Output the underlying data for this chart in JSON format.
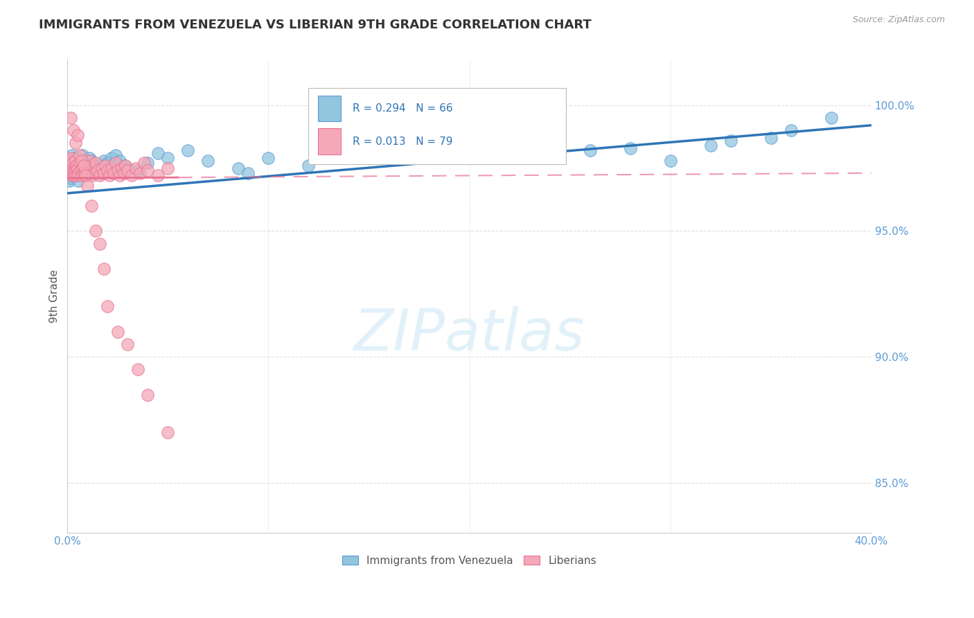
{
  "title": "IMMIGRANTS FROM VENEZUELA VS LIBERIAN 9TH GRADE CORRELATION CHART",
  "source": "Source: ZipAtlas.com",
  "ylabel": "9th Grade",
  "xlim": [
    0.0,
    40.0
  ],
  "ylim": [
    83.0,
    101.8
  ],
  "yticks": [
    85.0,
    90.0,
    95.0,
    100.0
  ],
  "xticks": [
    0,
    10,
    20,
    30,
    40
  ],
  "legend1_label": "Immigrants from Venezuela",
  "legend2_label": "Liberians",
  "blue_color": "#92C5DE",
  "blue_edge_color": "#5B9BD5",
  "pink_color": "#F4A8B8",
  "pink_edge_color": "#E87090",
  "blue_line_color": "#2E75B6",
  "pink_line_color": "#E87090",
  "background_color": "#FFFFFF",
  "tick_color": "#5B9BD5",
  "grid_color": "#DDDDDD",
  "watermark_color": "#D0E8F5",
  "legend_text_color": "#2E75B6",
  "title_color": "#333333",
  "source_color": "#999999",
  "ylabel_color": "#555555",
  "blue_line_x0": 0.0,
  "blue_line_y0": 96.5,
  "blue_line_x1": 40.0,
  "blue_line_y1": 99.2,
  "pink_line_x0": 0.0,
  "pink_line_y0": 97.1,
  "pink_line_x1": 40.0,
  "pink_line_y1": 97.3,
  "pink_solid_end_x": 5.5,
  "blue_scatter_x": [
    0.05,
    0.08,
    0.1,
    0.12,
    0.15,
    0.18,
    0.2,
    0.22,
    0.25,
    0.28,
    0.3,
    0.32,
    0.35,
    0.38,
    0.4,
    0.42,
    0.45,
    0.48,
    0.5,
    0.55,
    0.6,
    0.65,
    0.7,
    0.75,
    0.8,
    0.85,
    0.9,
    0.95,
    1.0,
    1.1,
    1.2,
    1.3,
    1.4,
    1.5,
    1.6,
    1.7,
    1.8,
    1.9,
    2.0,
    2.2,
    2.4,
    2.6,
    2.8,
    3.0,
    3.5,
    4.0,
    4.5,
    5.0,
    6.0,
    7.0,
    8.5,
    10.0,
    14.0,
    17.0,
    21.0,
    26.0,
    30.0,
    33.0,
    36.0,
    38.0,
    22.0,
    28.0,
    12.0,
    9.0,
    35.0,
    32.0
  ],
  "blue_scatter_y": [
    97.2,
    97.0,
    97.5,
    97.3,
    97.1,
    97.4,
    97.2,
    98.0,
    97.6,
    97.3,
    97.8,
    97.5,
    97.9,
    97.6,
    97.4,
    97.8,
    97.5,
    97.2,
    97.6,
    97.0,
    97.5,
    97.8,
    97.3,
    98.0,
    97.6,
    97.4,
    97.2,
    97.5,
    97.7,
    97.9,
    97.8,
    97.6,
    97.5,
    97.4,
    97.3,
    97.6,
    97.8,
    97.5,
    97.7,
    97.9,
    98.0,
    97.8,
    97.6,
    97.5,
    97.4,
    97.7,
    98.1,
    97.9,
    98.2,
    97.8,
    97.5,
    97.9,
    98.3,
    98.5,
    98.0,
    98.2,
    97.8,
    98.6,
    99.0,
    99.5,
    98.1,
    98.3,
    97.6,
    97.3,
    98.7,
    98.4
  ],
  "pink_scatter_x": [
    0.05,
    0.07,
    0.1,
    0.12,
    0.15,
    0.18,
    0.2,
    0.22,
    0.25,
    0.28,
    0.3,
    0.32,
    0.35,
    0.38,
    0.4,
    0.42,
    0.45,
    0.48,
    0.5,
    0.55,
    0.6,
    0.65,
    0.7,
    0.75,
    0.8,
    0.85,
    0.9,
    0.95,
    1.0,
    1.05,
    1.1,
    1.15,
    1.2,
    1.25,
    1.3,
    1.35,
    1.4,
    1.5,
    1.6,
    1.7,
    1.8,
    1.9,
    2.0,
    2.1,
    2.2,
    2.3,
    2.4,
    2.5,
    2.6,
    2.7,
    2.8,
    2.9,
    3.0,
    3.2,
    3.4,
    3.6,
    3.8,
    4.0,
    4.5,
    5.0,
    0.15,
    0.3,
    0.4,
    0.5,
    0.6,
    0.7,
    0.8,
    0.9,
    1.0,
    1.2,
    1.4,
    1.6,
    1.8,
    2.0,
    2.5,
    3.0,
    3.5,
    4.0,
    5.0
  ],
  "pink_scatter_y": [
    97.3,
    97.5,
    97.8,
    97.4,
    97.6,
    97.2,
    97.9,
    97.5,
    97.3,
    97.7,
    97.4,
    97.2,
    97.5,
    97.3,
    97.8,
    97.6,
    97.4,
    97.2,
    97.5,
    97.3,
    97.7,
    97.4,
    97.2,
    97.5,
    97.3,
    97.6,
    97.4,
    97.2,
    97.5,
    97.3,
    97.8,
    97.6,
    97.4,
    97.2,
    97.5,
    97.3,
    97.7,
    97.4,
    97.2,
    97.5,
    97.3,
    97.6,
    97.4,
    97.2,
    97.5,
    97.3,
    97.7,
    97.4,
    97.2,
    97.5,
    97.3,
    97.6,
    97.4,
    97.2,
    97.5,
    97.3,
    97.7,
    97.4,
    97.2,
    97.5,
    99.5,
    99.0,
    98.5,
    98.8,
    98.0,
    97.8,
    97.6,
    97.2,
    96.8,
    96.0,
    95.0,
    94.5,
    93.5,
    92.0,
    91.0,
    90.5,
    89.5,
    88.5,
    87.0
  ]
}
